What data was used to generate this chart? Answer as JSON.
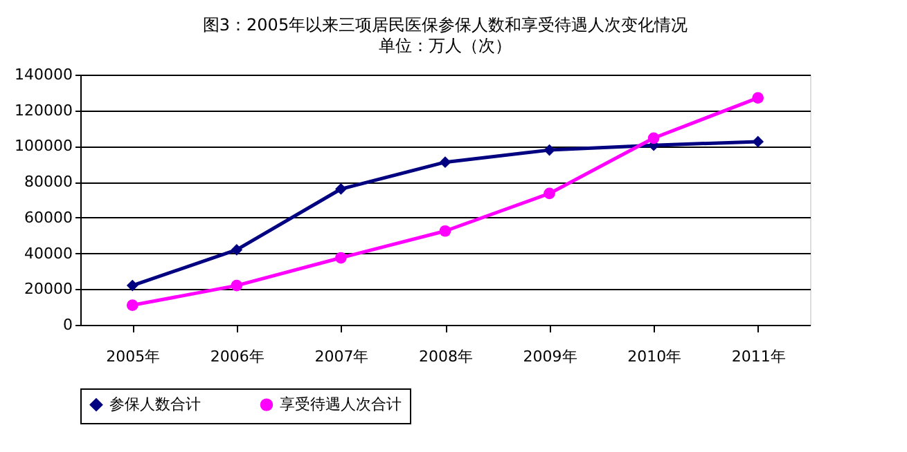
{
  "chart_data": {
    "type": "line",
    "title": "图3：2005年以来三项居民医保参保人数和享受待遇人次变化情况",
    "subtitle": "单位：万人（次）",
    "categories": [
      "2005年",
      "2006年",
      "2007年",
      "2008年",
      "2009年",
      "2010年",
      "2011年"
    ],
    "series": [
      {
        "name": "参保人数合计",
        "color": "#000080",
        "marker": "diamond",
        "values": [
          22000,
          42000,
          76000,
          91000,
          97800,
          100500,
          102500
        ]
      },
      {
        "name": "享受待遇人次合计",
        "color": "#ff00ff",
        "marker": "circle",
        "values": [
          11000,
          22000,
          37500,
          52500,
          73500,
          104500,
          127000
        ]
      }
    ],
    "ylim": [
      0,
      140000
    ],
    "yticks": [
      0,
      20000,
      40000,
      60000,
      80000,
      100000,
      120000,
      140000
    ],
    "grid": "y",
    "legend": "bottom"
  }
}
